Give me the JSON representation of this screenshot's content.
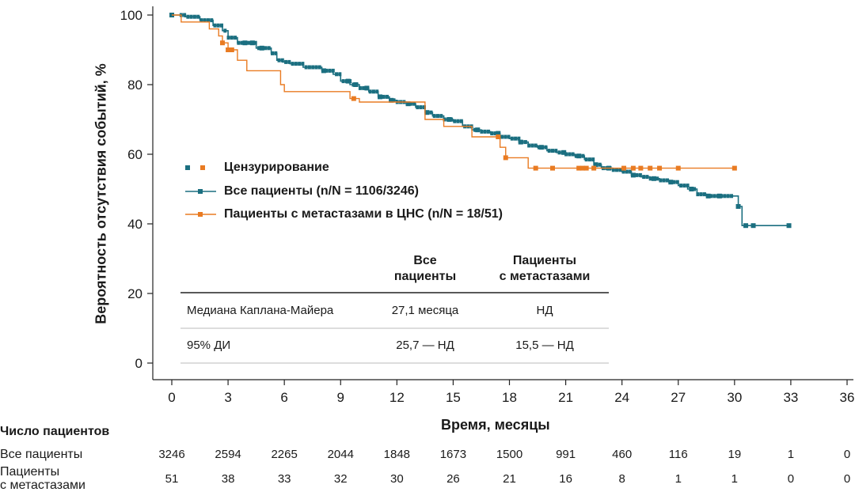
{
  "chart_data": {
    "type": "line",
    "xlabel": "Время, месяцы",
    "ylabel": "Вероятность отсутствия событий, %",
    "xlim": [
      0,
      36
    ],
    "ylim": [
      0,
      100
    ],
    "xticks": [
      "0",
      "3",
      "6",
      "9",
      "12",
      "15",
      "18",
      "21",
      "24",
      "27",
      "30",
      "33",
      "36"
    ],
    "yticks": [
      "0",
      "20",
      "40",
      "60",
      "80",
      "100"
    ],
    "legend": {
      "censor_label": "Цензурирование",
      "position": "center-left"
    },
    "series": [
      {
        "name": "Все пациенты (n/N = 1106/3246)",
        "color": "#1b6f80",
        "x": [
          0,
          0.7,
          1.5,
          2.2,
          2.7,
          3.0,
          3.5,
          4.5,
          5.3,
          5.6,
          5.9,
          6.3,
          7.0,
          8.0,
          8.6,
          9.0,
          9.5,
          10.0,
          10.5,
          11.0,
          11.6,
          12.0,
          12.5,
          13.0,
          13.5,
          13.9,
          14.5,
          15.0,
          15.5,
          16.0,
          16.5,
          17.0,
          17.5,
          18.0,
          18.5,
          19.0,
          19.5,
          20.0,
          20.5,
          21.0,
          21.5,
          22.0,
          22.5,
          22.9,
          23.5,
          24.0,
          24.5,
          25.0,
          25.5,
          26.0,
          26.5,
          27.0,
          27.5,
          28.0,
          28.5,
          29.0,
          29.5,
          30.0,
          30.2,
          30.4,
          30.5,
          31.0,
          31.5,
          32.0,
          32.9
        ],
        "y": [
          100,
          99.5,
          98.5,
          97,
          95.5,
          93.5,
          92,
          90.5,
          89,
          87,
          86.5,
          86,
          85,
          84,
          83,
          81,
          80,
          79,
          78,
          76.5,
          75.5,
          75,
          74.5,
          73.5,
          72,
          71,
          70,
          69.5,
          68,
          67,
          66.5,
          66,
          65,
          64.5,
          63.5,
          62.5,
          62,
          61,
          60.5,
          60,
          59.5,
          58.5,
          57,
          56,
          55.5,
          55,
          54,
          53.5,
          53,
          52.5,
          52,
          51,
          50,
          48.5,
          48,
          48,
          48,
          48,
          45,
          39.5,
          39.5,
          39.5,
          39.5,
          39.5,
          39.5
        ],
        "censor_x": [
          0,
          3.9,
          4.3,
          4.8,
          8.1,
          9.4,
          9.8,
          10.4,
          11.1,
          11.7,
          12.6,
          13.6,
          14.8,
          16.3,
          17.4,
          18.6,
          19.7,
          20.9,
          21.7,
          22.6,
          23.3,
          24.6,
          25.7,
          26.6,
          27.7,
          28.6,
          29.2,
          30.2,
          30.6,
          31.0,
          32.9
        ]
      },
      {
        "name": "Пациенты с метастазами в ЦНС (n/N = 18/51)",
        "color": "#e97b22",
        "x": [
          0,
          0.5,
          1.5,
          2.0,
          2.5,
          2.7,
          3.0,
          3.5,
          4.0,
          5.0,
          5.5,
          5.8,
          6.0,
          8.0,
          9.0,
          9.5,
          10.0,
          12.0,
          13.0,
          13.5,
          14.5,
          15.0,
          16.0,
          17.0,
          17.5,
          17.8,
          18.0,
          18.5,
          19.0,
          20.0,
          22.0,
          24.0,
          26.0,
          28.0,
          30.0
        ],
        "y": [
          100,
          98,
          98,
          96,
          94,
          92,
          90,
          87,
          84,
          84,
          84,
          80,
          78,
          78,
          78,
          76,
          75,
          75,
          75,
          70,
          68,
          68,
          65,
          65,
          62,
          59,
          59,
          59,
          56,
          56,
          56,
          56,
          56,
          56,
          56
        ],
        "censor_x": [
          2.7,
          3.0,
          3.2,
          9.7,
          17.4,
          17.8,
          19.4,
          20.3,
          21.7,
          21.9,
          22.1,
          22.5,
          24.1,
          24.6,
          25.0,
          25.5,
          26.0,
          27.0,
          30.0
        ]
      }
    ],
    "table": {
      "col_headers": [
        "Все\nпациенты",
        "Пациенты\nс метастазами"
      ],
      "rows": [
        {
          "label": "Медиана Каплана-Майера",
          "all": "27,1 месяца",
          "cns": "НД"
        },
        {
          "label": "95% ДИ",
          "all": "25,7 — НД",
          "cns": "15,5 — НД"
        }
      ]
    }
  },
  "risk_table": {
    "title": "Число пациентов",
    "rows": [
      {
        "label": "Все пациенты",
        "values": [
          "3246",
          "2594",
          "2265",
          "2044",
          "1848",
          "1673",
          "1500",
          "991",
          "460",
          "116",
          "19",
          "1",
          "0"
        ]
      },
      {
        "label": "Пациенты\nс метастазами",
        "values": [
          "51",
          "38",
          "33",
          "32",
          "30",
          "26",
          "21",
          "16",
          "8",
          "1",
          "1",
          "0",
          "0"
        ]
      }
    ]
  }
}
